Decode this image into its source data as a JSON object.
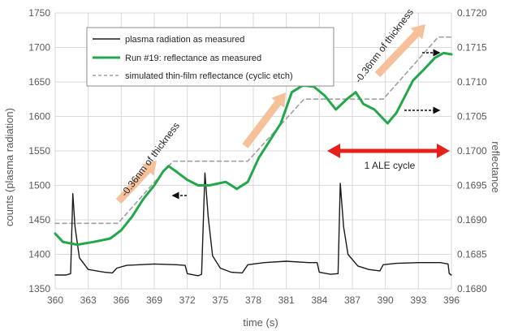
{
  "chart_data": {
    "type": "line",
    "xlabel": "time (s)",
    "ylabel_left": "counts (plasma radiation)",
    "ylabel_right": "reflectance",
    "xlim": [
      360,
      396
    ],
    "ylim_left": [
      1350,
      1750
    ],
    "ylim_right": [
      0.168,
      0.172
    ],
    "x_ticks": [
      "360",
      "363",
      "366",
      "369",
      "372",
      "375",
      "378",
      "381",
      "384",
      "387",
      "390",
      "393",
      "396"
    ],
    "y_left_ticks": [
      "1350",
      "1400",
      "1450",
      "1500",
      "1550",
      "1600",
      "1650",
      "1700",
      "1750"
    ],
    "y_right_ticks": [
      "0.1680",
      "0.1685",
      "0.1690",
      "0.1695",
      "0.1700",
      "0.1705",
      "0.1710",
      "0.1715",
      "0.1720"
    ],
    "grid": true,
    "legend_placement": "top-left",
    "series": [
      {
        "name": "plasma radiation as measured",
        "axis": "left",
        "color": "#1a1a1a",
        "points": [
          [
            360,
            1370
          ],
          [
            361,
            1370
          ],
          [
            361.4,
            1372
          ],
          [
            361.6,
            1488
          ],
          [
            361.8,
            1440
          ],
          [
            362.2,
            1395
          ],
          [
            363,
            1378
          ],
          [
            364.5,
            1374
          ],
          [
            365.2,
            1373
          ],
          [
            365.6,
            1380
          ],
          [
            366.5,
            1384
          ],
          [
            369,
            1386
          ],
          [
            371,
            1385
          ],
          [
            371.8,
            1384
          ],
          [
            372,
            1372
          ],
          [
            373,
            1369
          ],
          [
            373.3,
            1371
          ],
          [
            373.6,
            1518
          ],
          [
            373.9,
            1455
          ],
          [
            374.3,
            1398
          ],
          [
            375,
            1380
          ],
          [
            376,
            1374
          ],
          [
            377,
            1373
          ],
          [
            377.5,
            1385
          ],
          [
            379,
            1388
          ],
          [
            381,
            1390
          ],
          [
            383,
            1388
          ],
          [
            383.8,
            1388
          ],
          [
            384,
            1374
          ],
          [
            385,
            1371
          ],
          [
            385.7,
            1372
          ],
          [
            385.9,
            1503
          ],
          [
            386.2,
            1440
          ],
          [
            386.6,
            1400
          ],
          [
            387.5,
            1383
          ],
          [
            388.5,
            1378
          ],
          [
            389.5,
            1376
          ],
          [
            389.8,
            1385
          ],
          [
            391,
            1387
          ],
          [
            393,
            1388
          ],
          [
            395,
            1388
          ],
          [
            395.7,
            1386
          ],
          [
            395.8,
            1372
          ],
          [
            396,
            1370
          ]
        ]
      },
      {
        "name": "Run #19: reflectance as measured",
        "axis": "right",
        "color": "#22a84a",
        "points": [
          [
            360,
            0.1688
          ],
          [
            360.7,
            0.16868
          ],
          [
            362,
            0.16864
          ],
          [
            363.5,
            0.16868
          ],
          [
            365,
            0.16873
          ],
          [
            366,
            0.16885
          ],
          [
            367,
            0.16905
          ],
          [
            368,
            0.1693
          ],
          [
            369,
            0.1695
          ],
          [
            369.8,
            0.1697
          ],
          [
            370.3,
            0.16978
          ],
          [
            371,
            0.1697
          ],
          [
            372,
            0.16958
          ],
          [
            373,
            0.1695
          ],
          [
            374,
            0.1695
          ],
          [
            375.5,
            0.16955
          ],
          [
            376.5,
            0.16945
          ],
          [
            377.5,
            0.16955
          ],
          [
            378.5,
            0.1699
          ],
          [
            379.5,
            0.17015
          ],
          [
            380.5,
            0.1704
          ],
          [
            381.5,
            0.17085
          ],
          [
            382.5,
            0.17095
          ],
          [
            383.5,
            0.17093
          ],
          [
            384.5,
            0.1708
          ],
          [
            385.5,
            0.1706
          ],
          [
            386.5,
            0.17075
          ],
          [
            387.3,
            0.17085
          ],
          [
            388,
            0.17068
          ],
          [
            389,
            0.1706
          ],
          [
            390.2,
            0.1704
          ],
          [
            391,
            0.17055
          ],
          [
            391.8,
            0.1708
          ],
          [
            392.5,
            0.17102
          ],
          [
            393.5,
            0.17118
          ],
          [
            394.5,
            0.17135
          ],
          [
            395.3,
            0.17142
          ],
          [
            396,
            0.1714
          ]
        ]
      },
      {
        "name": "simulated thin-film reflectance (cyclic etch)",
        "axis": "right",
        "color": "#a0a0a0",
        "points": [
          [
            360,
            0.16895
          ],
          [
            365.7,
            0.16895
          ],
          [
            370.7,
            0.16985
          ],
          [
            377.5,
            0.16985
          ],
          [
            382.6,
            0.17075
          ],
          [
            389.8,
            0.17075
          ],
          [
            394.8,
            0.17165
          ],
          [
            396,
            0.17165
          ]
        ]
      }
    ]
  },
  "annotations": {
    "thickness_label_left": "-0.36nm of thickness",
    "thickness_label_right": "-0.36nm of thickness",
    "cycle_label": "1 ALE cycle",
    "arrow_color": "#f5c09a",
    "cycle_arrow_color": "#e8201c"
  }
}
